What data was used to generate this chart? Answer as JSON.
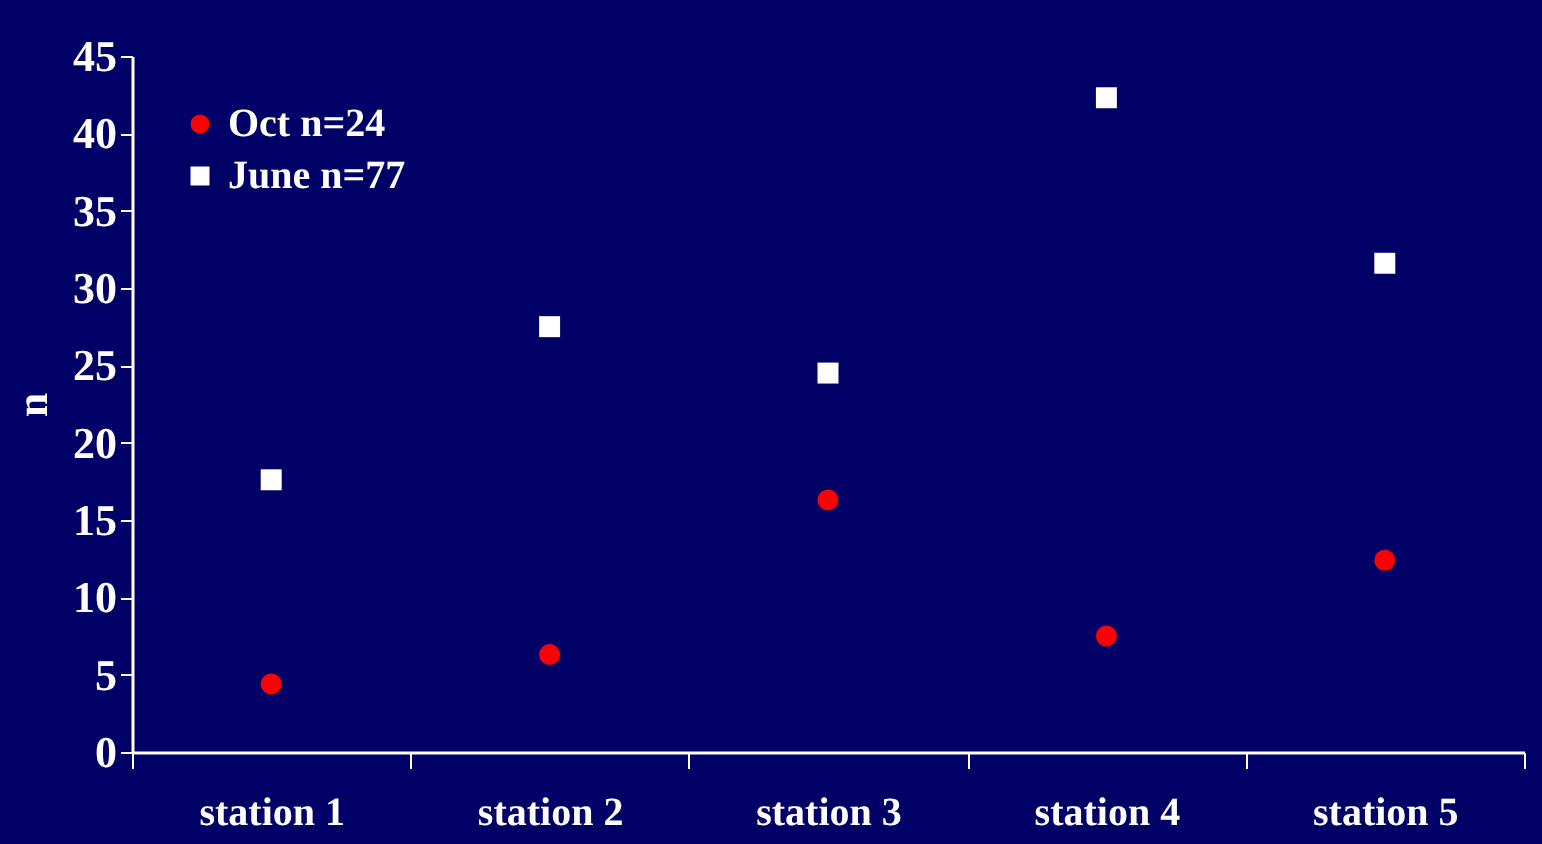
{
  "chart_data": {
    "type": "scatter",
    "ylabel": "n",
    "categories": [
      "station 1",
      "station 2",
      "station 3",
      "station 4",
      "station 5"
    ],
    "series": [
      {
        "name": "Oct   n=24",
        "color": "#ff0000",
        "marker": "circle",
        "values": [
          4.4,
          6.3,
          16.3,
          7.5,
          12.4
        ]
      },
      {
        "name": "June n=77",
        "color": "#ffffff",
        "marker": "square",
        "values": [
          17.6,
          27.5,
          24.5,
          42.3,
          31.6
        ]
      }
    ],
    "ylim": [
      0,
      45
    ],
    "yticks": [
      0,
      5,
      10,
      15,
      20,
      25,
      30,
      35,
      40,
      45
    ],
    "grid": false,
    "legend": "top left"
  }
}
